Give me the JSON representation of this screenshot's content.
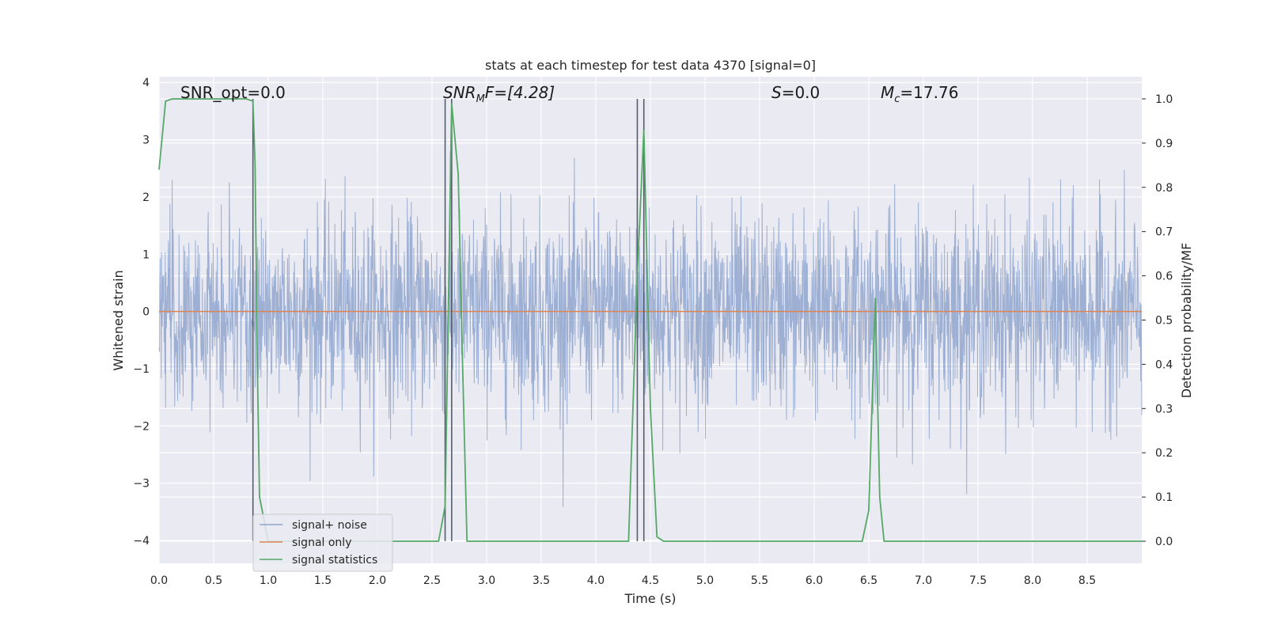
{
  "chart_data": {
    "type": "line",
    "title": "stats at each timestep for test data 4370 [signal=0]",
    "xlabel": "Time (s)",
    "ylabel_left": "Whitened strain",
    "ylabel_right": "Detection probability/MF",
    "xlim": [
      0.0,
      9.0
    ],
    "ylim_left": [
      -4.4,
      4.1
    ],
    "ylim_right": [
      -0.05,
      1.05
    ],
    "x_ticks": [
      "0.0",
      "0.5",
      "1.0",
      "1.5",
      "2.0",
      "2.5",
      "3.0",
      "3.5",
      "4.0",
      "4.5",
      "5.0",
      "5.5",
      "6.0",
      "6.5",
      "7.0",
      "7.5",
      "8.0",
      "8.5"
    ],
    "y_ticks_left": [
      "−4",
      "−3",
      "−2",
      "−1",
      "0",
      "1",
      "2",
      "3",
      "4"
    ],
    "y_ticks_right": [
      "0.0",
      "0.1",
      "0.2",
      "0.3",
      "0.4",
      "0.5",
      "0.6",
      "0.7",
      "0.8",
      "0.9",
      "1.0"
    ],
    "grid": true,
    "legend_position": "lower-left",
    "annotations": {
      "snr_opt": "SNR_opt=0.0",
      "snr_mf_sym": "SNR",
      "snr_mf_sub": "M",
      "snr_mf_rest": "F=[4.28]",
      "s_sym": "S",
      "s_rest": "=0.0",
      "mc_sym": "M",
      "mc_sub": "c",
      "mc_rest": "=17.76"
    },
    "series": [
      {
        "name": "signal+ noise",
        "color": "#8fa5cc",
        "noise_sigma": 0.85,
        "sample_rate": 300
      },
      {
        "name": "signal only",
        "color": "#dd8452",
        "x": [
          0.0,
          9.0
        ],
        "y": [
          0.0,
          0.0
        ]
      },
      {
        "name": "signal statistics",
        "color": "#55a868",
        "axis": "right",
        "x": [
          0.0,
          0.06,
          0.12,
          0.2,
          0.3,
          0.4,
          0.5,
          0.6,
          0.7,
          0.8,
          0.86,
          0.88,
          0.9,
          0.92,
          1.0,
          2.56,
          2.62,
          2.68,
          2.74,
          2.78,
          2.82,
          4.3,
          4.38,
          4.44,
          4.5,
          4.56,
          4.62,
          5.5,
          6.44,
          6.5,
          6.56,
          6.6,
          6.64,
          9.0
        ],
        "y": [
          0.84,
          0.995,
          1.0,
          1.0,
          1.0,
          1.0,
          1.0,
          1.0,
          1.0,
          1.0,
          0.995,
          0.85,
          0.4,
          0.1,
          0.0,
          0.0,
          0.08,
          0.99,
          0.83,
          0.4,
          0.0,
          0.0,
          0.6,
          0.93,
          0.3,
          0.01,
          0.0,
          0.0,
          0.0,
          0.07,
          0.55,
          0.1,
          0.0,
          0.0
        ]
      }
    ],
    "markers": {
      "color": "#555e6a",
      "x": [
        0.86,
        2.62,
        2.68,
        4.38,
        4.44
      ]
    }
  }
}
